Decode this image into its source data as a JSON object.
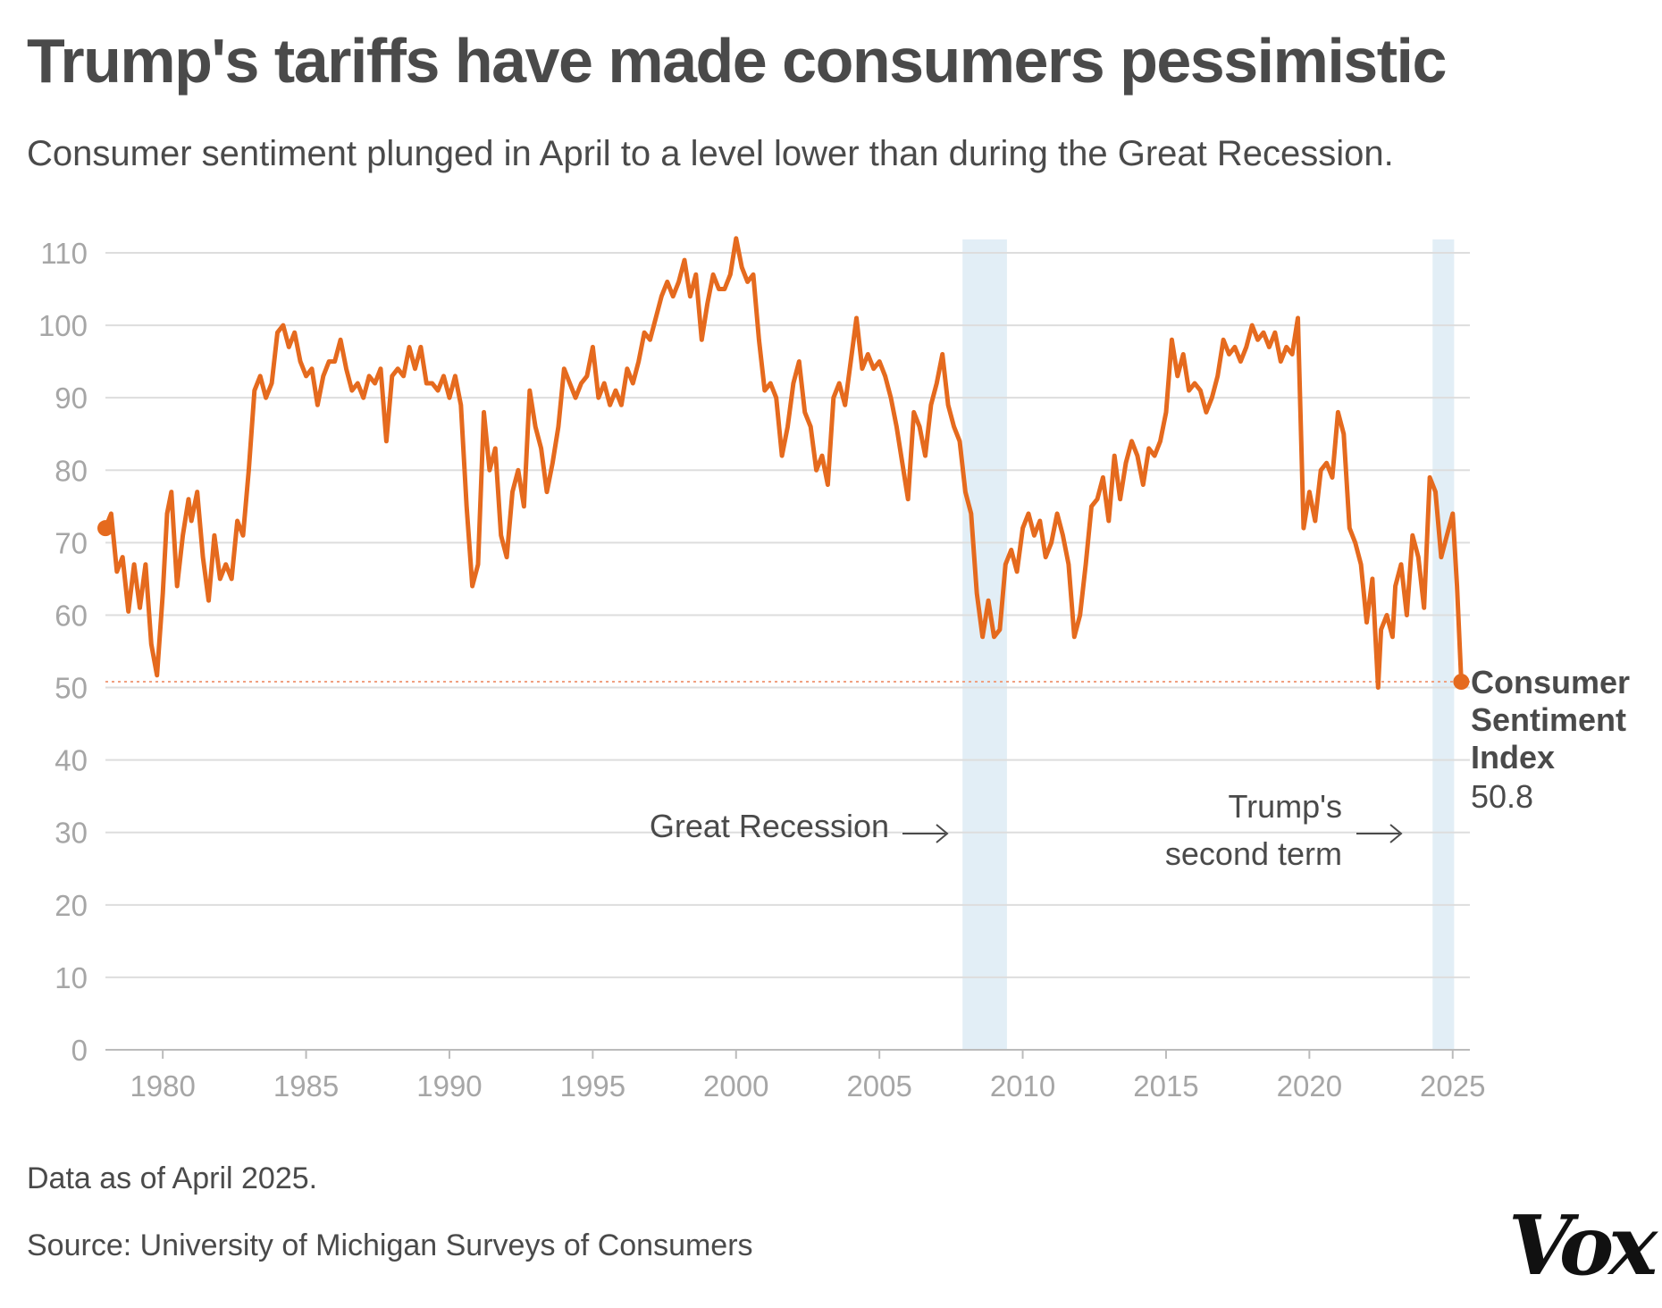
{
  "title": "Trump's tariffs have made consumers pessimistic",
  "subtitle": "Consumer sentiment plunged in April to a level lower than during the Great Recession.",
  "note": "Data as of April 2025.",
  "source": "Source: University of Michigan Surveys of Consumers",
  "logo": "Vox",
  "colors": {
    "line": "#e56a1e",
    "band": "#e2eef6",
    "grid": "#dddddd",
    "reference_line": "#f0a080"
  },
  "chart_data": {
    "type": "line",
    "title": "Trump's tariffs have made consumers pessimistic",
    "xlabel": "",
    "ylabel": "",
    "xlim": [
      1978,
      2025.6
    ],
    "ylim": [
      0,
      110
    ],
    "grid": true,
    "x_ticks": [
      1980,
      1985,
      1990,
      1995,
      2000,
      2005,
      2010,
      2015,
      2020,
      2025
    ],
    "x_tick_labels": [
      "1980",
      "1985",
      "1990",
      "1995",
      "2000",
      "2005",
      "2010",
      "2015",
      "2020",
      "2025"
    ],
    "y_ticks": [
      0,
      10,
      20,
      30,
      40,
      50,
      60,
      70,
      80,
      90,
      100,
      110
    ],
    "y_tick_labels": [
      "0",
      "10",
      "20",
      "30",
      "40",
      "50",
      "60",
      "70",
      "80",
      "90",
      "100",
      "110"
    ],
    "shaded_periods": [
      {
        "name": "Great Recession",
        "label": "Great Recession",
        "start": 2007.9,
        "end": 2009.45
      },
      {
        "name": "Trump's second term",
        "label_line1": "Trump's",
        "label_line2": "second term",
        "start": 2024.3,
        "end": 2025.05
      }
    ],
    "reference_line": {
      "y": 50.8
    },
    "end_label": {
      "line1": "Consumer",
      "line2": "Sentiment",
      "line3": "Index",
      "value_text": "50.8",
      "value": 50.8
    },
    "series": [
      {
        "name": "Consumer Sentiment Index",
        "x": [
          1978,
          1978.2,
          1978.4,
          1978.6,
          1978.8,
          1979.0,
          1979.2,
          1979.4,
          1979.6,
          1979.8,
          1980.0,
          1980.15,
          1980.3,
          1980.5,
          1980.7,
          1980.9,
          1981.0,
          1981.2,
          1981.4,
          1981.6,
          1981.8,
          1982.0,
          1982.2,
          1982.4,
          1982.6,
          1982.8,
          1983.0,
          1983.2,
          1983.4,
          1983.6,
          1983.8,
          1984.0,
          1984.2,
          1984.4,
          1984.6,
          1984.8,
          1985.0,
          1985.2,
          1985.4,
          1985.6,
          1985.8,
          1986.0,
          1986.2,
          1986.4,
          1986.6,
          1986.8,
          1987.0,
          1987.2,
          1987.4,
          1987.6,
          1987.8,
          1988.0,
          1988.2,
          1988.4,
          1988.6,
          1988.8,
          1989.0,
          1989.2,
          1989.4,
          1989.6,
          1989.8,
          1990.0,
          1990.2,
          1990.4,
          1990.6,
          1990.8,
          1991.0,
          1991.2,
          1991.4,
          1991.6,
          1991.8,
          1992.0,
          1992.2,
          1992.4,
          1992.6,
          1992.8,
          1993.0,
          1993.2,
          1993.4,
          1993.6,
          1993.8,
          1994.0,
          1994.2,
          1994.4,
          1994.6,
          1994.8,
          1995.0,
          1995.2,
          1995.4,
          1995.6,
          1995.8,
          1996.0,
          1996.2,
          1996.4,
          1996.6,
          1996.8,
          1997.0,
          1997.2,
          1997.4,
          1997.6,
          1997.8,
          1998.0,
          1998.2,
          1998.4,
          1998.6,
          1998.8,
          1999.0,
          1999.2,
          1999.4,
          1999.6,
          1999.8,
          2000.0,
          2000.2,
          2000.4,
          2000.6,
          2000.8,
          2001.0,
          2001.2,
          2001.4,
          2001.6,
          2001.8,
          2002.0,
          2002.2,
          2002.4,
          2002.6,
          2002.8,
          2003.0,
          2003.2,
          2003.4,
          2003.6,
          2003.8,
          2004.0,
          2004.2,
          2004.4,
          2004.6,
          2004.8,
          2005.0,
          2005.2,
          2005.4,
          2005.6,
          2005.8,
          2006.0,
          2006.2,
          2006.4,
          2006.6,
          2006.8,
          2007.0,
          2007.2,
          2007.4,
          2007.6,
          2007.8,
          2008.0,
          2008.2,
          2008.4,
          2008.6,
          2008.8,
          2009.0,
          2009.2,
          2009.4,
          2009.6,
          2009.8,
          2010.0,
          2010.2,
          2010.4,
          2010.6,
          2010.8,
          2011.0,
          2011.2,
          2011.4,
          2011.6,
          2011.8,
          2012.0,
          2012.2,
          2012.4,
          2012.6,
          2012.8,
          2013.0,
          2013.2,
          2013.4,
          2013.6,
          2013.8,
          2014.0,
          2014.2,
          2014.4,
          2014.6,
          2014.8,
          2015.0,
          2015.2,
          2015.4,
          2015.6,
          2015.8,
          2016.0,
          2016.2,
          2016.4,
          2016.6,
          2016.8,
          2017.0,
          2017.2,
          2017.4,
          2017.6,
          2017.8,
          2018.0,
          2018.2,
          2018.4,
          2018.6,
          2018.8,
          2019.0,
          2019.2,
          2019.4,
          2019.6,
          2019.8,
          2020.0,
          2020.2,
          2020.4,
          2020.6,
          2020.8,
          2021.0,
          2021.2,
          2021.4,
          2021.6,
          2021.8,
          2022.0,
          2022.2,
          2022.4,
          2022.5,
          2022.7,
          2022.9,
          2023.0,
          2023.2,
          2023.4,
          2023.6,
          2023.8,
          2024.0,
          2024.2,
          2024.4,
          2024.6,
          2024.8,
          2025.0,
          2025.15,
          2025.3
        ],
        "values": [
          72.0,
          74.0,
          66.0,
          68.0,
          60.5,
          67.0,
          61.0,
          67.0,
          56.0,
          51.7,
          63.0,
          74.0,
          77.0,
          64.0,
          71.0,
          76.0,
          73.0,
          77.0,
          68.0,
          62.0,
          71.0,
          65.0,
          67.0,
          65.0,
          73.0,
          71.0,
          80.0,
          91.0,
          93.0,
          90.0,
          92.0,
          99.0,
          100.0,
          97.0,
          99.0,
          95.0,
          93.0,
          94.0,
          89.0,
          93.0,
          95.0,
          95.0,
          98.0,
          94.0,
          91.0,
          92.0,
          90.0,
          93.0,
          92.0,
          94.0,
          84.0,
          93.0,
          94.0,
          93.0,
          97.0,
          94.0,
          97.0,
          92.0,
          92.0,
          91.0,
          93.0,
          90.0,
          93.0,
          89.0,
          75.0,
          64.0,
          67.0,
          88.0,
          80.0,
          83.0,
          71.0,
          68.0,
          77.0,
          80.0,
          75.0,
          91.0,
          86.0,
          83.0,
          77.0,
          81.0,
          86.0,
          94.0,
          92.0,
          90.0,
          92.0,
          93.0,
          97.0,
          90.0,
          92.0,
          89.0,
          91.0,
          89.0,
          94.0,
          92.0,
          95.0,
          99.0,
          98.0,
          101.0,
          104.0,
          106.0,
          104.0,
          106.0,
          109.0,
          104.0,
          107.0,
          98.0,
          103.0,
          107.0,
          105.0,
          105.0,
          107.0,
          112.0,
          108.0,
          106.0,
          107.0,
          98.0,
          91.0,
          92.0,
          90.0,
          82.0,
          86.0,
          92.0,
          95.0,
          88.0,
          86.0,
          80.0,
          82.0,
          78.0,
          90.0,
          92.0,
          89.0,
          95.0,
          101.0,
          94.0,
          96.0,
          94.0,
          95.0,
          93.0,
          90.0,
          86.0,
          81.0,
          76.0,
          88.0,
          86.0,
          82.0,
          89.0,
          92.0,
          96.0,
          89.0,
          86.0,
          84.0,
          77.0,
          74.0,
          63.0,
          57.0,
          62.0,
          57.0,
          58.0,
          67.0,
          69.0,
          66.0,
          72.0,
          74.0,
          71.0,
          73.0,
          68.0,
          70.0,
          74.0,
          71.0,
          67.0,
          57.0,
          60.0,
          67.0,
          75.0,
          76.0,
          79.0,
          73.0,
          82.0,
          76.0,
          81.0,
          84.0,
          82.0,
          78.0,
          83.0,
          82.0,
          84.0,
          88.0,
          98.0,
          93.0,
          96.0,
          91.0,
          92.0,
          91.0,
          88.0,
          90.0,
          93.0,
          98.0,
          96.0,
          97.0,
          95.0,
          97.0,
          100.0,
          98.0,
          99.0,
          97.0,
          99.0,
          95.0,
          97.0,
          96.0,
          101.0,
          72.0,
          77.0,
          73.0,
          80.0,
          81.0,
          79.0,
          88.0,
          85.0,
          72.0,
          70.0,
          67.0,
          59.0,
          65.0,
          50.0,
          58.0,
          60.0,
          57.0,
          64.0,
          67.0,
          60.0,
          71.0,
          68.0,
          61.0,
          79.0,
          77.0,
          68.0,
          71.0,
          74.0,
          64.0,
          50.8
        ]
      }
    ]
  }
}
